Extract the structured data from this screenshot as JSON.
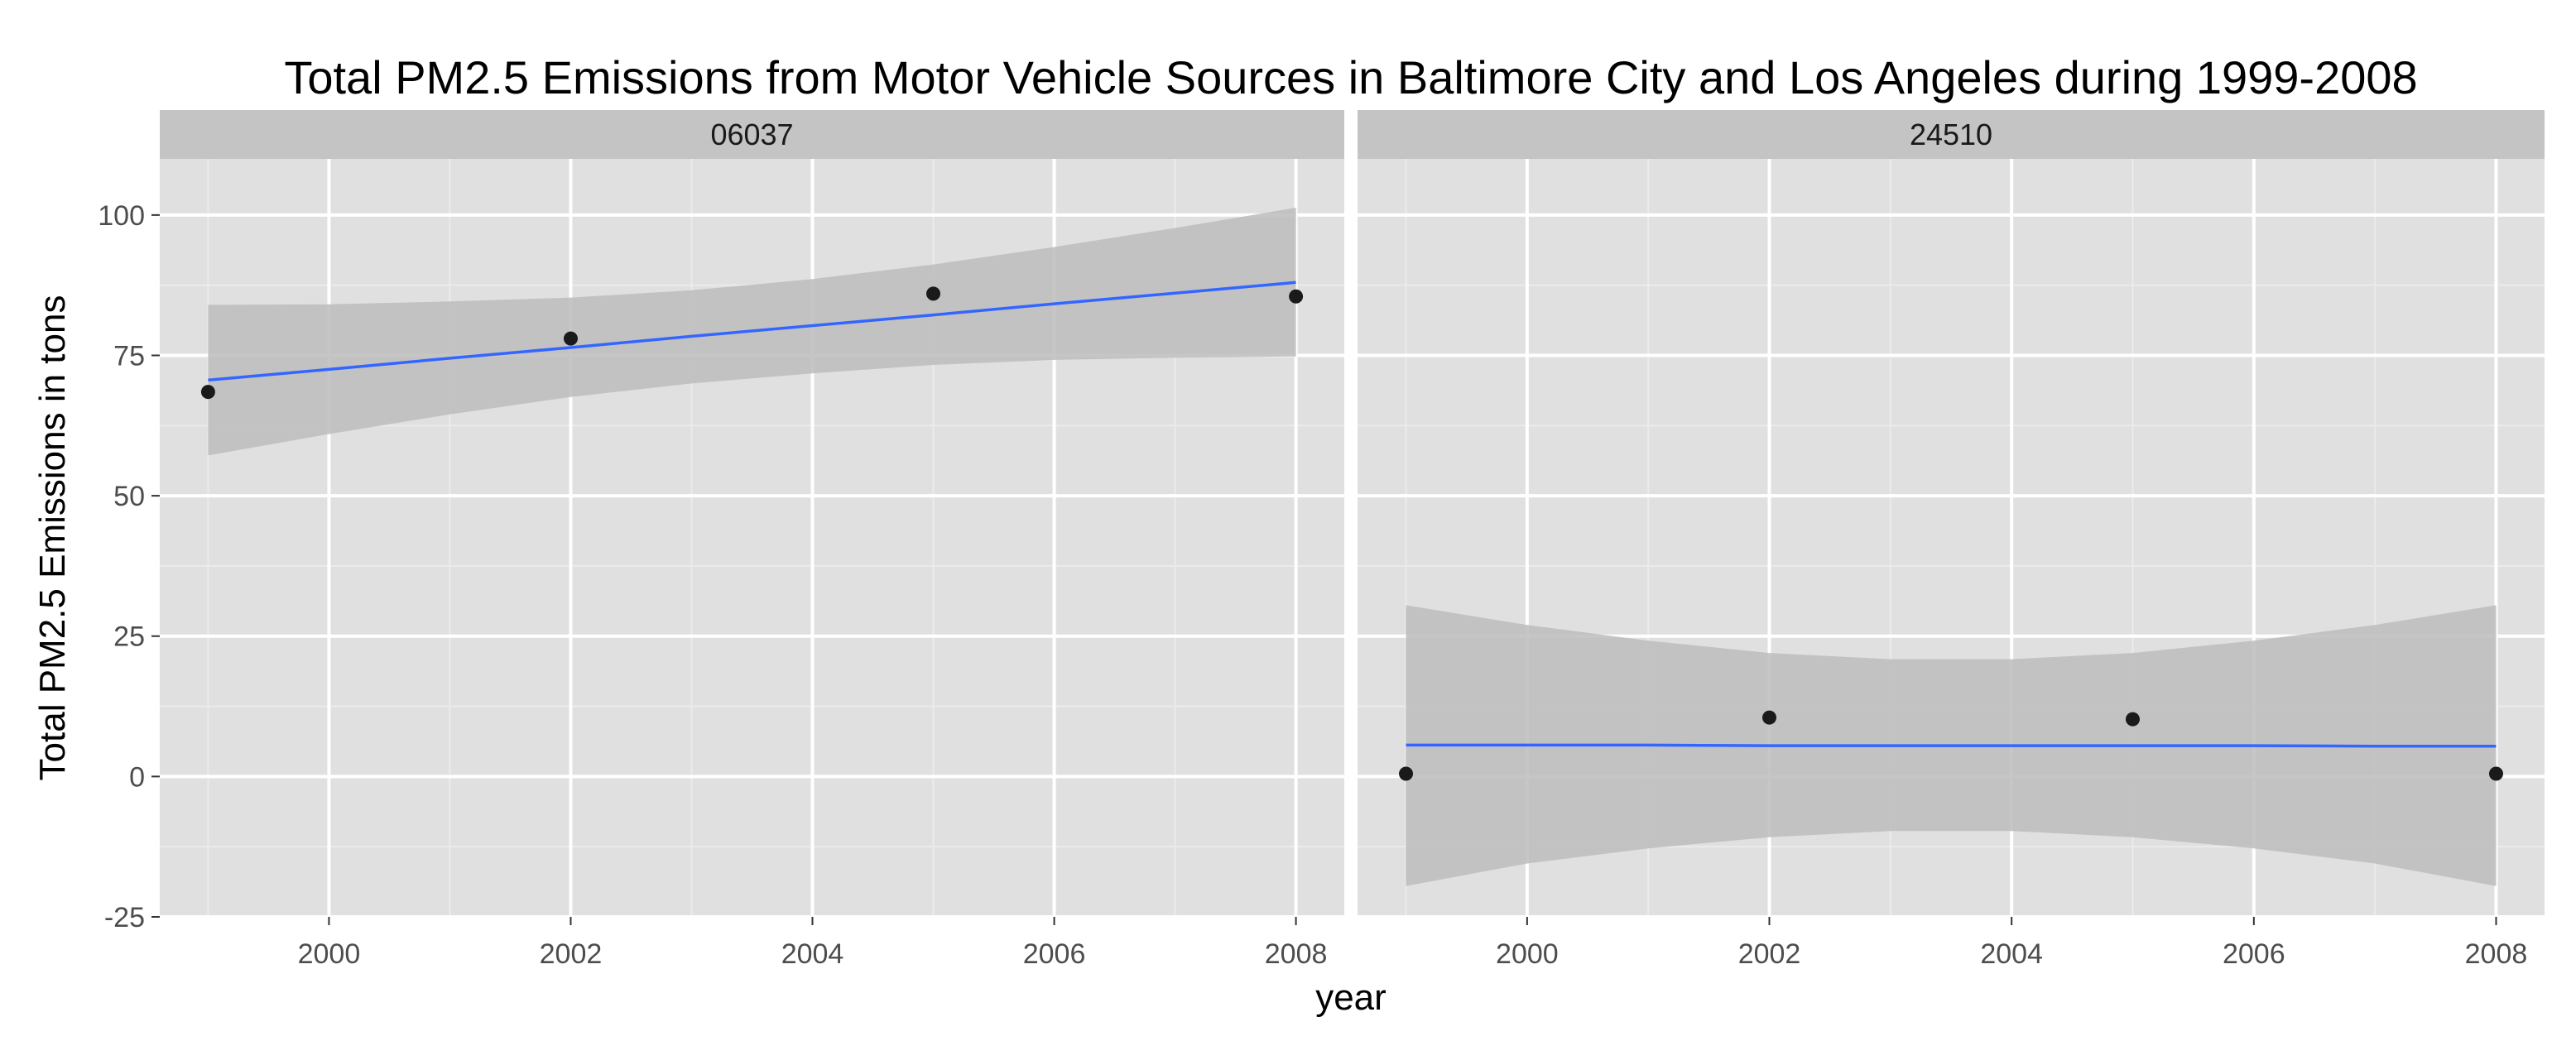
{
  "chart_data": {
    "type": "scatter",
    "title": "Total PM2.5 Emissions from Motor Vehicle Sources in Baltimore City and Los Angeles during 1999-2008",
    "xlabel": "year",
    "ylabel": "Total PM2.5 Emissions in tons",
    "xlim": [
      1998.6,
      2008.4
    ],
    "ylim": [
      -25,
      110
    ],
    "x_ticks": [
      2000,
      2002,
      2004,
      2006,
      2008
    ],
    "x_tick_labels": [
      "2000",
      "2002",
      "2004",
      "2006",
      "2008"
    ],
    "y_ticks": [
      -25,
      0,
      25,
      50,
      75,
      100
    ],
    "y_tick_labels": [
      "-25",
      "0",
      "25",
      "50",
      "75",
      "100"
    ],
    "grid": true,
    "colors": {
      "panel_bg": "#e0e0e0",
      "strip_bg": "#c4c4c4",
      "grid_major": "#ffffff",
      "grid_minor": "#ebebeb",
      "point": "#1a1a1a",
      "smooth_line": "#3366ff",
      "ribbon": "#bcbcbc"
    },
    "panels": [
      {
        "strip_label": "06037",
        "points": {
          "x": [
            1999,
            2002,
            2005,
            2008
          ],
          "y": [
            68.5,
            78,
            86,
            85.5
          ]
        },
        "smooth": {
          "x": [
            1999,
            2000,
            2001,
            2002,
            2003,
            2004,
            2005,
            2006,
            2007,
            2008
          ],
          "fit": [
            70.6,
            72.5,
            74.5,
            76.4,
            78.4,
            80.3,
            82.2,
            84.2,
            86.1,
            88.0
          ],
          "lower": [
            57.2,
            61.0,
            64.5,
            67.6,
            70.0,
            71.8,
            73.3,
            74.2,
            74.6,
            74.8
          ],
          "upper": [
            84.0,
            84.1,
            84.6,
            85.3,
            86.6,
            88.6,
            91.2,
            94.3,
            97.7,
            101.3
          ]
        }
      },
      {
        "strip_label": "24510",
        "points": {
          "x": [
            1999,
            2002,
            2005,
            2008
          ],
          "y": [
            0.5,
            10.5,
            10.2,
            0.5
          ]
        },
        "smooth": {
          "x": [
            1999,
            2000,
            2001,
            2002,
            2003,
            2004,
            2005,
            2006,
            2007,
            2008
          ],
          "fit": [
            5.6,
            5.6,
            5.6,
            5.5,
            5.5,
            5.5,
            5.5,
            5.5,
            5.4,
            5.4
          ],
          "lower": [
            -19.5,
            -15.5,
            -12.8,
            -10.8,
            -9.7,
            -9.7,
            -10.8,
            -12.8,
            -15.5,
            -19.5
          ],
          "upper": [
            30.5,
            27.0,
            24.2,
            22.0,
            20.9,
            20.9,
            22.0,
            24.2,
            27.0,
            30.5
          ]
        }
      }
    ]
  }
}
